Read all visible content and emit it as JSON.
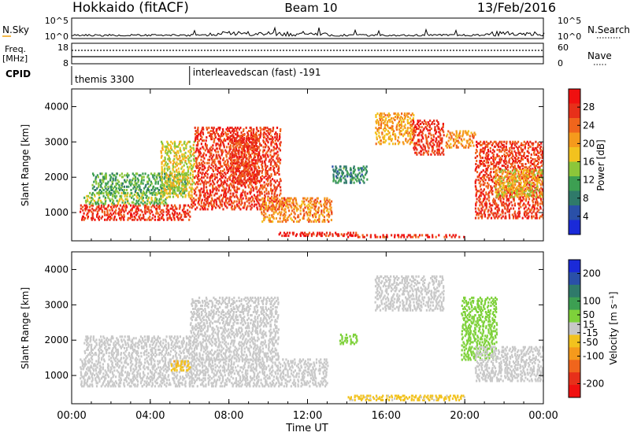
{
  "header": {
    "title": "Hokkaido (fitACF)",
    "beam": "Beam 10",
    "date": "13/Feb/2016"
  },
  "strip_labels": {
    "nsky": "N.Sky",
    "nsearch": "N.Search",
    "freq_line1": "Freq.",
    "freq_line2": "[MHz]",
    "nave": "Nave",
    "cpid": "CPID",
    "nsky_ticks": [
      "10^5",
      "10^0"
    ],
    "nsearch_ticks": [
      "10^5",
      "10^0"
    ],
    "freq_ticks": [
      "18",
      "8"
    ],
    "nave_ticks": [
      "60",
      "0"
    ]
  },
  "cpid_segments": [
    {
      "label": "themis 3300",
      "start_hour": 0.0
    },
    {
      "label": "interleavedscan (fast) -191",
      "start_hour": 6.0
    }
  ],
  "colors": {
    "power_scale": [
      "#1a2ad8",
      "#2a50a8",
      "#2f7a6a",
      "#3d9f52",
      "#8cc63a",
      "#f2c21e",
      "#f59a1c",
      "#f0651c",
      "#e7301a",
      "#f01010"
    ],
    "velocity_scale": [
      "#1a2ad8",
      "#2a50a8",
      "#2f7a6a",
      "#3d9f52",
      "#7ed13a",
      "#c8c8c8",
      "#f2c21e",
      "#f59a1c",
      "#f0651c",
      "#e7301a",
      "#f01010"
    ]
  },
  "chart_data": [
    {
      "type": "heatmap",
      "name": "power",
      "ylabel": "Slant Range [km]",
      "ylim": [
        200,
        4500
      ],
      "yticks": [
        1000,
        2000,
        3000,
        4000
      ],
      "xlim": [
        0,
        24
      ],
      "colorbar": {
        "label": "Power [dB]",
        "ticks": [
          4,
          8,
          12,
          16,
          20,
          24,
          28
        ],
        "range": [
          0,
          32
        ]
      },
      "regions": [
        {
          "x": [
            0.4,
            6.0
          ],
          "y": [
            750,
            1200
          ],
          "level": 27
        },
        {
          "x": [
            0.6,
            4.8
          ],
          "y": [
            1200,
            1550
          ],
          "level": 14
        },
        {
          "x": [
            1.0,
            5.8
          ],
          "y": [
            1500,
            2100
          ],
          "level": 12
        },
        {
          "x": [
            4.5,
            6.2
          ],
          "y": [
            1400,
            3000
          ],
          "level": 17
        },
        {
          "x": [
            6.0,
            11.0
          ],
          "y": [
            1050,
            1400
          ],
          "level": 27
        },
        {
          "x": [
            6.2,
            10.6
          ],
          "y": [
            1400,
            3400
          ],
          "level": 27
        },
        {
          "x": [
            8.0,
            9.5
          ],
          "y": [
            1800,
            3200
          ],
          "level": 27
        },
        {
          "x": [
            9.6,
            13.2
          ],
          "y": [
            700,
            1400
          ],
          "level": 22
        },
        {
          "x": [
            10.4,
            14.5
          ],
          "y": [
            300,
            420
          ],
          "level": 29
        },
        {
          "x": [
            14.0,
            20.0
          ],
          "y": [
            260,
            360
          ],
          "level": 28
        },
        {
          "x": [
            15.4,
            17.4
          ],
          "y": [
            2900,
            3800
          ],
          "level": 20
        },
        {
          "x": [
            17.3,
            18.9
          ],
          "y": [
            2600,
            3600
          ],
          "level": 27
        },
        {
          "x": [
            19.0,
            20.5
          ],
          "y": [
            2800,
            3300
          ],
          "level": 22
        },
        {
          "x": [
            20.5,
            24.0
          ],
          "y": [
            800,
            3000
          ],
          "level": 27
        },
        {
          "x": [
            21.5,
            24.0
          ],
          "y": [
            1400,
            2200
          ],
          "level": 18
        },
        {
          "x": [
            13.2,
            15.0
          ],
          "y": [
            1800,
            2300
          ],
          "level": 9
        }
      ]
    },
    {
      "type": "heatmap",
      "name": "velocity",
      "ylabel": "Slant Range [km]",
      "xlabel": "Time UT",
      "ylim": [
        200,
        4500
      ],
      "yticks": [
        1000,
        2000,
        3000,
        4000
      ],
      "xlim": [
        0,
        24
      ],
      "xticks": [
        "00:00",
        "04:00",
        "08:00",
        "12:00",
        "16:00",
        "20:00",
        "00:00"
      ],
      "colorbar": {
        "label": "Velocity [m s⁻¹]",
        "ticks": [
          200,
          100,
          50,
          15,
          -15,
          -50,
          -100,
          -200
        ],
        "range": [
          -250,
          250
        ]
      },
      "regions": [
        {
          "x": [
            0.4,
            13.0
          ],
          "y": [
            650,
            1450
          ],
          "level": 0
        },
        {
          "x": [
            0.6,
            6.0
          ],
          "y": [
            1450,
            2100
          ],
          "level": 0
        },
        {
          "x": [
            6.0,
            10.5
          ],
          "y": [
            1400,
            3200
          ],
          "level": 0
        },
        {
          "x": [
            5.0,
            6.0
          ],
          "y": [
            1100,
            1400
          ],
          "level": -60
        },
        {
          "x": [
            14.0,
            20.0
          ],
          "y": [
            260,
            420
          ],
          "level": -30
        },
        {
          "x": [
            15.4,
            18.9
          ],
          "y": [
            2800,
            3800
          ],
          "level": 0
        },
        {
          "x": [
            19.8,
            21.6
          ],
          "y": [
            1400,
            3200
          ],
          "level": 35
        },
        {
          "x": [
            20.5,
            24.0
          ],
          "y": [
            800,
            1800
          ],
          "level": 0
        },
        {
          "x": [
            13.6,
            14.5
          ],
          "y": [
            1850,
            2150
          ],
          "level": 35
        }
      ]
    }
  ]
}
